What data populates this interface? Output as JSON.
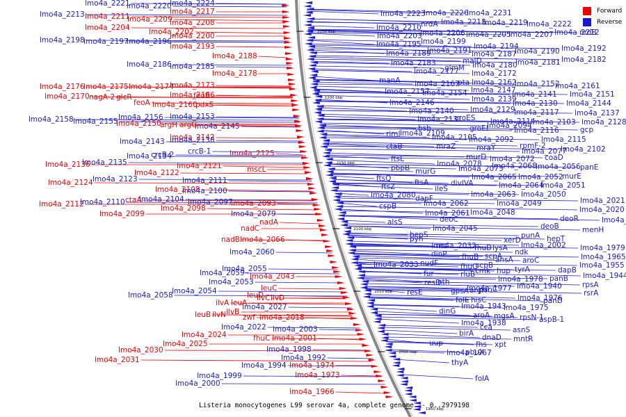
{
  "caption": "Listeria monocytogenes L99 serovar 4a, complete genome. - 0..2979198",
  "legend": [
    {
      "label": "Forward",
      "color": "#ee0000"
    },
    {
      "label": "Reverse",
      "color": "#1a1acc"
    }
  ],
  "colors": {
    "forward": "#ee0000",
    "reverse": "#1a1acc",
    "backbone": "#888888"
  },
  "scale_ticks": [
    "2250 kbp",
    "2200 kbp",
    "2150 kbp",
    "2100 kbp",
    "2050 kbp",
    "2000 kbp",
    "1950 kbp"
  ],
  "forward_labels": [
    "lmo4a_2217",
    "lmo4a_2211",
    "lmo4a_2209",
    "lmo4a_2208",
    "lmo4a_2204",
    "lmo4a_2202",
    "lmo4a_2200",
    "lmo4a_2193",
    "lmo4a_2188",
    "lmo4a_2178",
    "lmo4a_2176",
    "lmo4a_2175",
    "lmo4a_2174",
    "lmo4a_2173",
    "lmo4a_2170",
    "nagA-2",
    "glcR",
    "lmo4a_2166",
    "feoB",
    "feoA",
    "lmo4a_2160",
    "pdxS",
    "lmo4a_2150",
    "argH",
    "argG",
    "lmo4a_2142",
    "lmo4a_2125",
    "lmo4a_2136",
    "lmo4a_2122",
    "lmo4a_2121",
    "mscL",
    "lmo4a_2124",
    "lmo4a_2108",
    "lmo4a_2112",
    "ctaA",
    "lmo4a_2098",
    "lmo4a_2099",
    "lmo4a_2093",
    "nadA",
    "nadC",
    "nadB",
    "lmo4a_2066",
    "lmo4a_2043",
    "leuC",
    "leuD",
    "ilvC",
    "ilvD",
    "ilvA",
    "leuA",
    "leuB",
    "ilvN",
    "ilvB",
    "zwf",
    "lmo4a_2018",
    "lmo4a_2024",
    "fhuC",
    "lmo4a_2001",
    "lmo4a_2025",
    "lmo4a_2030",
    "lmo4a_2031",
    "lmo4a_1974",
    "lmo4a_1973",
    "lmo4a_1966"
  ],
  "reverse_labels": [
    "lmo4a_2221",
    "lmo4a_2220",
    "lmo4a_2224",
    "lmo4a_2213",
    "lmo4a_2198",
    "lmo4a_2197",
    "lmo4a_2196",
    "lmo4a_2186",
    "lmo4a_2185",
    "lmo4a_2158",
    "lmo4a_2156",
    "lmo4a_2155",
    "lmo4a_2153",
    "lmo4a_2145",
    "lmo4a_2143",
    "lmo4a_2138",
    "lmo4a_2135",
    "lmo4a_2134",
    "crcB-2",
    "crcB-1",
    "lmo4a_2123",
    "lmo4a_2111",
    "lmo4a_2110",
    "lmo4a_2104",
    "lmo4a_2100",
    "lmo4a_2097",
    "lmo4a_2079",
    "lmo4a_2060",
    "lmo4a_2059",
    "lmo4a_2055",
    "lmo4a_2053",
    "lmo4a_2054",
    "lmo4a_2058",
    "lmo4a_2027",
    "lmo4a_2022",
    "lmo4a_2003",
    "lmo4a_1998",
    "lmo4a_1992",
    "lmo4a_1994",
    "lmo4a_1999",
    "lmo4a_2000",
    "lmo4a_2223",
    "lmo4a_2226",
    "lmo4a_2231",
    "lmo4a_2210",
    "nrdA",
    "lmo4a_2218",
    "lmo4a_2219",
    "lmo4a_2222",
    "lmo4a_2203",
    "lmo4a_2206",
    "lmo4a_2205",
    "lmo4a_2207",
    "lmo4a_2212",
    "nrdB",
    "lmo4a_2195",
    "lmo4a_2199",
    "lmo4a_2194",
    "lmo4a_2189",
    "lmo4a_2191",
    "lmo4a_2187",
    "lmo4a_2190",
    "lmo4a_2192",
    "malD",
    "lmo4a_2183",
    "lmo4a_2180",
    "lmo4a_2181",
    "lmo4a_2182",
    "glmM",
    "lmo4a_2177",
    "lmo4a_2172",
    "manA",
    "lmo4a_2167",
    "pta",
    "lmo4a_2162",
    "lmo4a_2152",
    "lmo4a_2161",
    "lmo4a_2157",
    "lmo4a_2154",
    "lmo4a_2147",
    "lmo4a_2141",
    "lmo4a_2151",
    "lmo4a_2146",
    "lmo4a_2139",
    "lmo4a_2130",
    "lmo4a_2144",
    "lmo4a_2140",
    "lmo4a_2129",
    "lmo4a_2117",
    "lmo4a_2137",
    "lmo4a_2131",
    "groES",
    "lmo4a_2114",
    "lmo4a_2103",
    "lmo4a_2128",
    "bsh",
    "groEL",
    "lmo4a_2094",
    "gcp",
    "rimI",
    "lmo4a_2109",
    "lmo4a_2116",
    "lmo4a_2105",
    "lmo4a_2092",
    "lmo4a_2115",
    "ctaB",
    "mraZ",
    "rpmF-2",
    "mraY",
    "lmo4a_2077",
    "lmo4a_2102",
    "murD",
    "lmo4a_2072",
    "coaD",
    "ftsL",
    "lmo4a_2078",
    "lmo4a_2068",
    "lmo4a_2056",
    "panE",
    "pbpB",
    "murG",
    "lmo4a_2073",
    "lmo4a_2065",
    "lmo4a_2052",
    "murE",
    "ftsQ",
    "ftsA",
    "divIVA",
    "lmo4a_2064",
    "lmo4a_2051",
    "ftsZ",
    "ileS",
    "lmo4a_2080",
    "dapF",
    "lmo4a_2063",
    "lmo4a_2050",
    "lmo4a_2062",
    "lmo4a_2049",
    "cspB",
    "lmo4a_2061",
    "lmo4a_2048",
    "lmo4a_2021",
    "lmo4a_2020",
    "deoC",
    "alsS",
    "lmo4a_2045",
    "deoR",
    "lmo4a_2019",
    "hepS",
    "deoB",
    "pyn",
    "menH",
    "punA",
    "lmo4a_2032",
    "xerD",
    "hepT",
    "rnz",
    "fhuD",
    "lysA",
    "lmo4a_2002",
    "lmo4a_1979",
    "ndk",
    "dinP",
    "fhuB",
    "scpA",
    "aroC",
    "lmo4a_1965",
    "nudF",
    "lmo4a_2033",
    "fhuG",
    "scpB",
    "ansA",
    "dapB",
    "lmo4a_1955",
    "cmk",
    "hup",
    "tyrA",
    "fur",
    "rluB",
    "lmo4a_1944",
    "lmo4a_1978",
    "panB",
    "resD",
    "nth",
    "lmo4a_1977",
    "lmo4a_1940",
    "panC",
    "rpsA",
    "gpsA",
    "argH",
    "rsrA",
    "resE",
    "folE",
    "hisC",
    "lmo4a_1976",
    "panD",
    "lmo4a_1943",
    "lmo4a_1975",
    "dinG",
    "aroA",
    "mgsA",
    "aspB-1",
    "rpsN-1",
    "lmo4a_1938",
    "cca",
    "asnS",
    "birA",
    "dnaD",
    "mntR",
    "fhs",
    "xpt",
    "uup",
    "lmo4a_1967",
    "pbuX",
    "thyA",
    "folA",
    "msrB"
  ]
}
